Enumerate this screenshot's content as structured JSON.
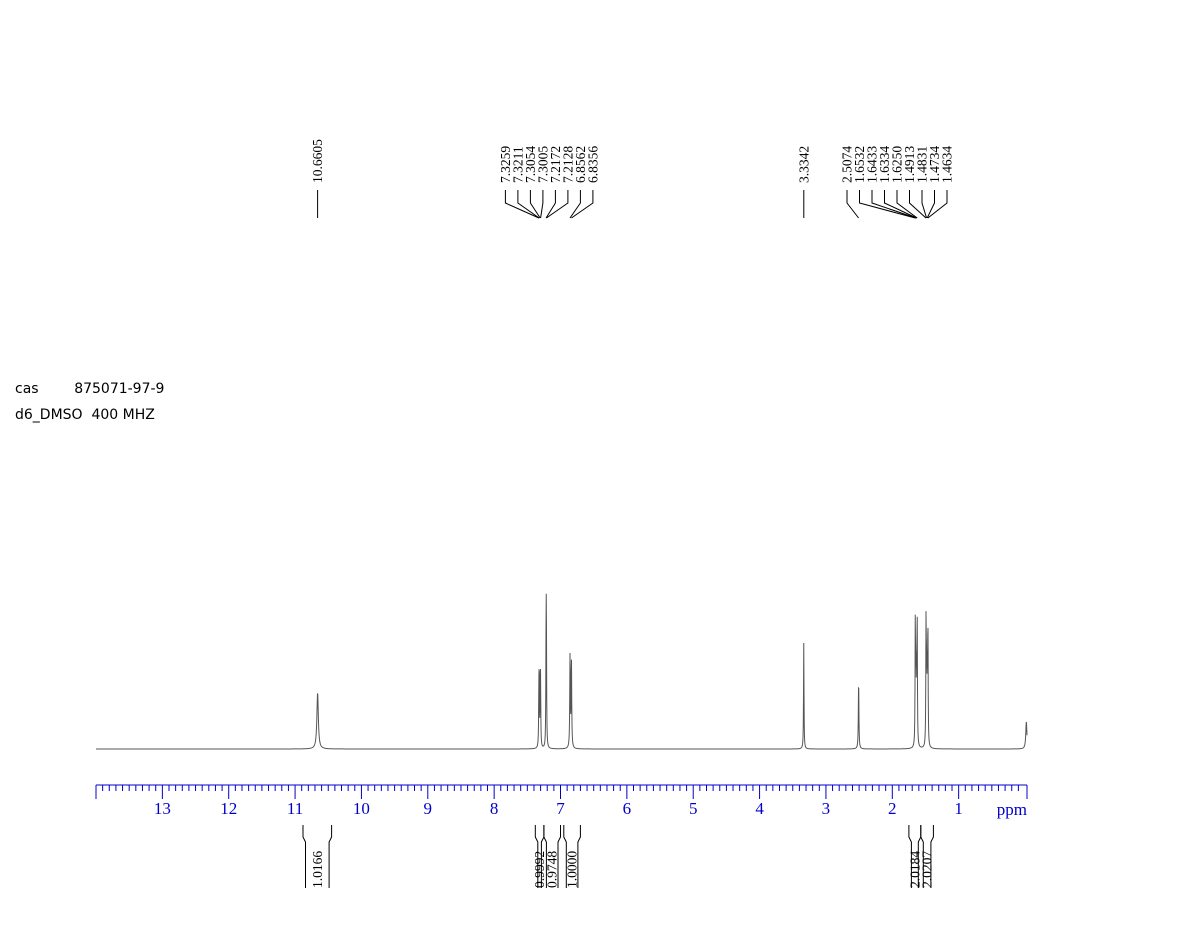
{
  "sample": {
    "cas_label": "cas",
    "cas_number": "875071-97-9",
    "solvent": "d6_DMSO",
    "frequency": "400 MHZ"
  },
  "chart_data": {
    "type": "line",
    "title": "",
    "x_unit_label": "ppm",
    "x_reversed": true,
    "xlim": [
      14.0,
      -0.03
    ],
    "x_ticks": [
      13,
      12,
      11,
      10,
      9,
      8,
      7,
      6,
      5,
      4,
      3,
      2,
      1
    ],
    "x_tick_labels": [
      "13",
      "12",
      "11",
      "10",
      "9",
      "8",
      "7",
      "6",
      "5",
      "4",
      "3",
      "2",
      "1"
    ],
    "ylim": [
      0,
      1.0
    ],
    "grid": false,
    "colors": {
      "spectrum": "#555555",
      "axis": "#0000cc",
      "annotation": "#000000"
    },
    "peaks": [
      {
        "ppm": 10.6605,
        "height": 0.43,
        "width": 0.013
      },
      {
        "ppm": 7.3259,
        "height": 0.38,
        "width": 0.004
      },
      {
        "ppm": 7.3211,
        "height": 0.41,
        "width": 0.004
      },
      {
        "ppm": 7.3054,
        "height": 0.38,
        "width": 0.004
      },
      {
        "ppm": 7.3005,
        "height": 0.41,
        "width": 0.004
      },
      {
        "ppm": 7.2172,
        "height": 0.77,
        "width": 0.004
      },
      {
        "ppm": 7.2128,
        "height": 0.77,
        "width": 0.004
      },
      {
        "ppm": 6.8562,
        "height": 0.71,
        "width": 0.005
      },
      {
        "ppm": 6.8356,
        "height": 0.69,
        "width": 0.005
      },
      {
        "ppm": 3.3342,
        "height": 0.81,
        "width": 0.004
      },
      {
        "ppm": 2.5074,
        "height": 0.53,
        "width": 0.005
      },
      {
        "ppm": 1.6532,
        "height": 0.97,
        "width": 0.004
      },
      {
        "ppm": 1.6433,
        "height": 0.5,
        "width": 0.004
      },
      {
        "ppm": 1.6334,
        "height": 0.5,
        "width": 0.004
      },
      {
        "ppm": 1.625,
        "height": 0.96,
        "width": 0.004
      },
      {
        "ppm": 1.4913,
        "height": 0.96,
        "width": 0.004
      },
      {
        "ppm": 1.4831,
        "height": 0.5,
        "width": 0.004
      },
      {
        "ppm": 1.4734,
        "height": 0.5,
        "width": 0.004
      },
      {
        "ppm": 1.4634,
        "height": 0.95,
        "width": 0.004
      },
      {
        "ppm": -0.02,
        "height": 0.21,
        "width": 0.01
      }
    ],
    "peak_label_groups": [
      {
        "labels": [
          "10.6605"
        ],
        "peaks": [
          10.6605
        ]
      },
      {
        "labels": [
          "7.3259",
          "7.3211",
          "7.3054",
          "7.3005",
          "7.2172",
          "7.2128",
          "6.8562",
          "6.8356"
        ],
        "peaks": [
          7.3259,
          7.3211,
          7.3054,
          7.3005,
          7.2172,
          7.2128,
          6.8562,
          6.8356
        ]
      },
      {
        "labels": [
          "3.3342"
        ],
        "peaks": [
          3.3342
        ]
      },
      {
        "labels": [
          "2.5074",
          "1.6532",
          "1.6433",
          "1.6334",
          "1.6250",
          "1.4913",
          "1.4831",
          "1.4734",
          "1.4634"
        ],
        "peaks": [
          2.5074,
          1.6532,
          1.6433,
          1.6334,
          1.625,
          1.4913,
          1.4831,
          1.4734,
          1.4634
        ]
      }
    ],
    "integrals": [
      {
        "value": "1.0166",
        "from": 10.88,
        "to": 10.45
      },
      {
        "value": "0.9992",
        "from": 7.38,
        "to": 7.25
      },
      {
        "value": "0.9748",
        "from": 7.25,
        "to": 7.0
      },
      {
        "value": "1.0000",
        "from": 6.95,
        "to": 6.7
      },
      {
        "value": "2.0184",
        "from": 1.75,
        "to": 1.57
      },
      {
        "value": "2.0207",
        "from": 1.57,
        "to": 1.38
      }
    ]
  }
}
